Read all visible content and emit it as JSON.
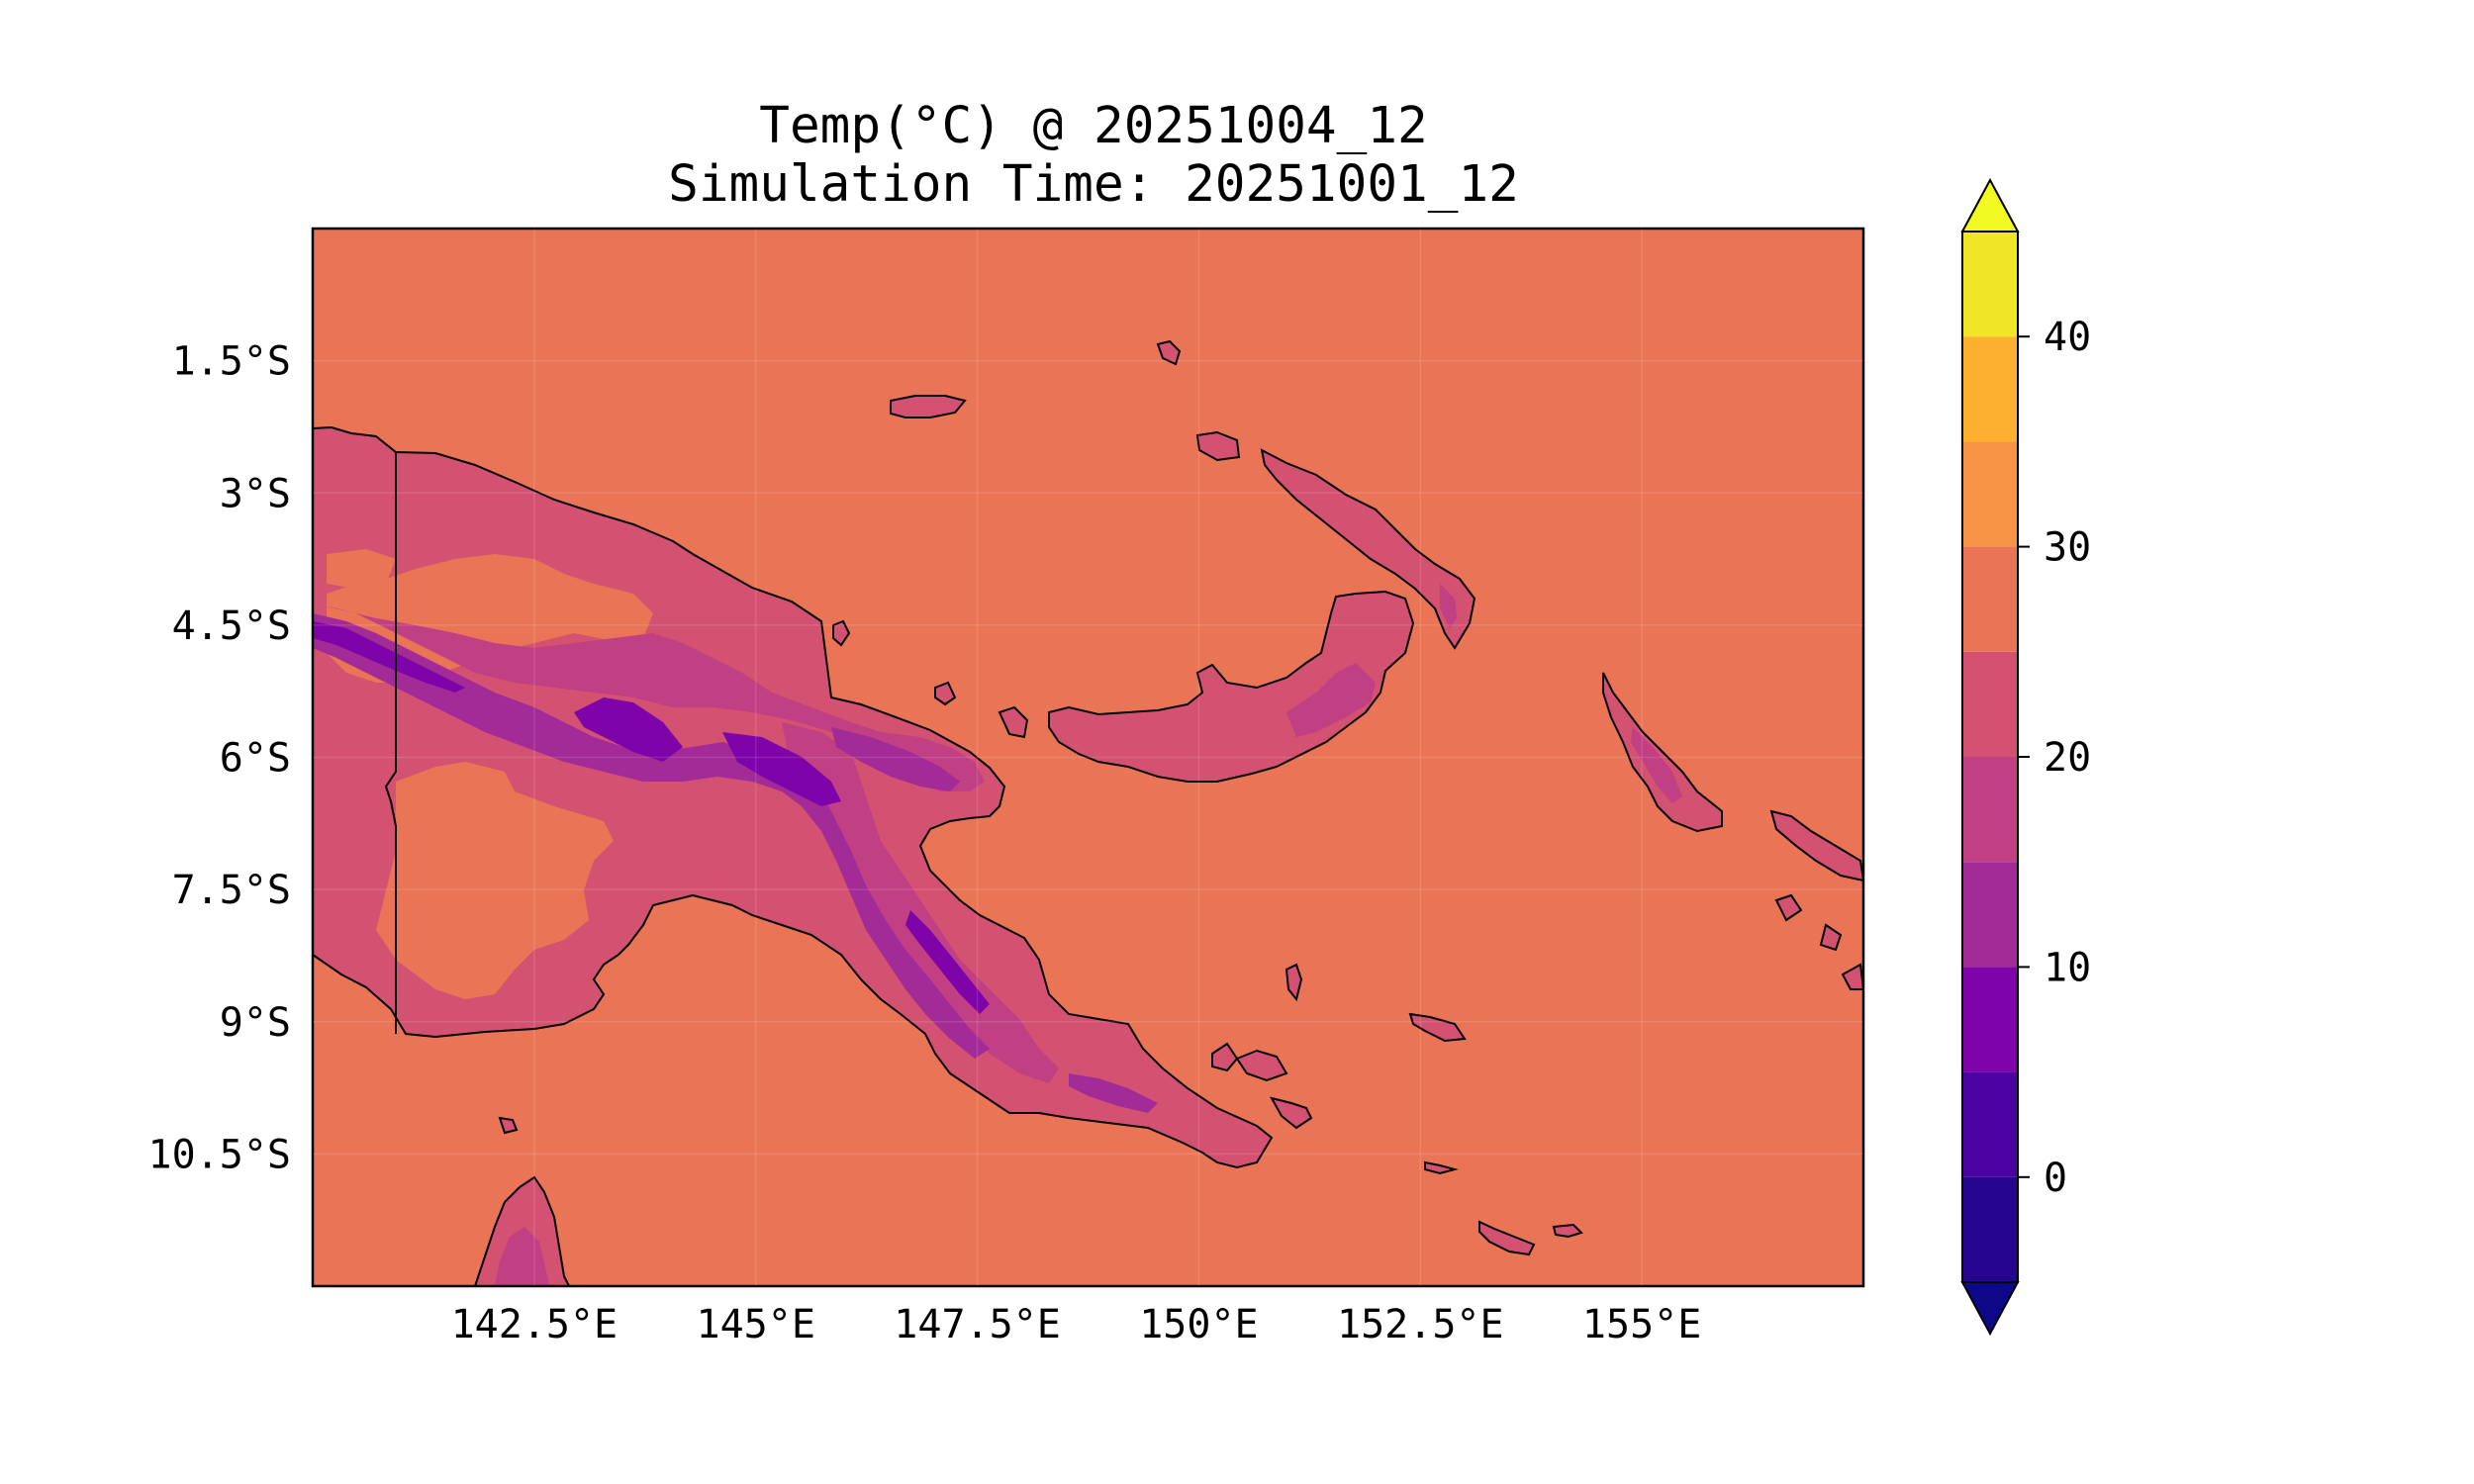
{
  "title": "Temp(°C) @ 20251004_12",
  "subtitle": "Simulation Time: 20251001_12",
  "map": {
    "lon_range": [
      140,
      157.5
    ],
    "lat_range": [
      -12,
      0
    ],
    "x_ticks": [
      "142.5°E",
      "145°E",
      "147.5°E",
      "150°E",
      "152.5°E",
      "155°E"
    ],
    "y_ticks": [
      "1.5°S",
      "3°S",
      "4.5°S",
      "6°S",
      "7.5°S",
      "9°S",
      "10.5°S"
    ],
    "ocean_color": "#e97556"
  },
  "colorbar": {
    "levels": [
      -5,
      0,
      5,
      10,
      15,
      20,
      25,
      30,
      35,
      40,
      45
    ],
    "colors": [
      "#260591",
      "#4c02a1",
      "#7e03a8",
      "#a22b97",
      "#c13f83",
      "#d35171",
      "#e97556",
      "#f69344",
      "#fdb030",
      "#f1e626"
    ],
    "under_color": "#0d0887",
    "over_color": "#f0f921",
    "tick_labels": [
      "0",
      "10",
      "20",
      "30",
      "40"
    ]
  },
  "chart_data": {
    "type": "heatmap",
    "variable": "Temp(°C)",
    "valid_time": "20251004_12",
    "simulation_time": "20251001_12",
    "xlim": [
      140,
      157.5
    ],
    "ylim": [
      -12,
      0
    ],
    "colorbar_range": [
      -5,
      45
    ],
    "colorbar_ticks": [
      0,
      10,
      20,
      30,
      40
    ]
  }
}
